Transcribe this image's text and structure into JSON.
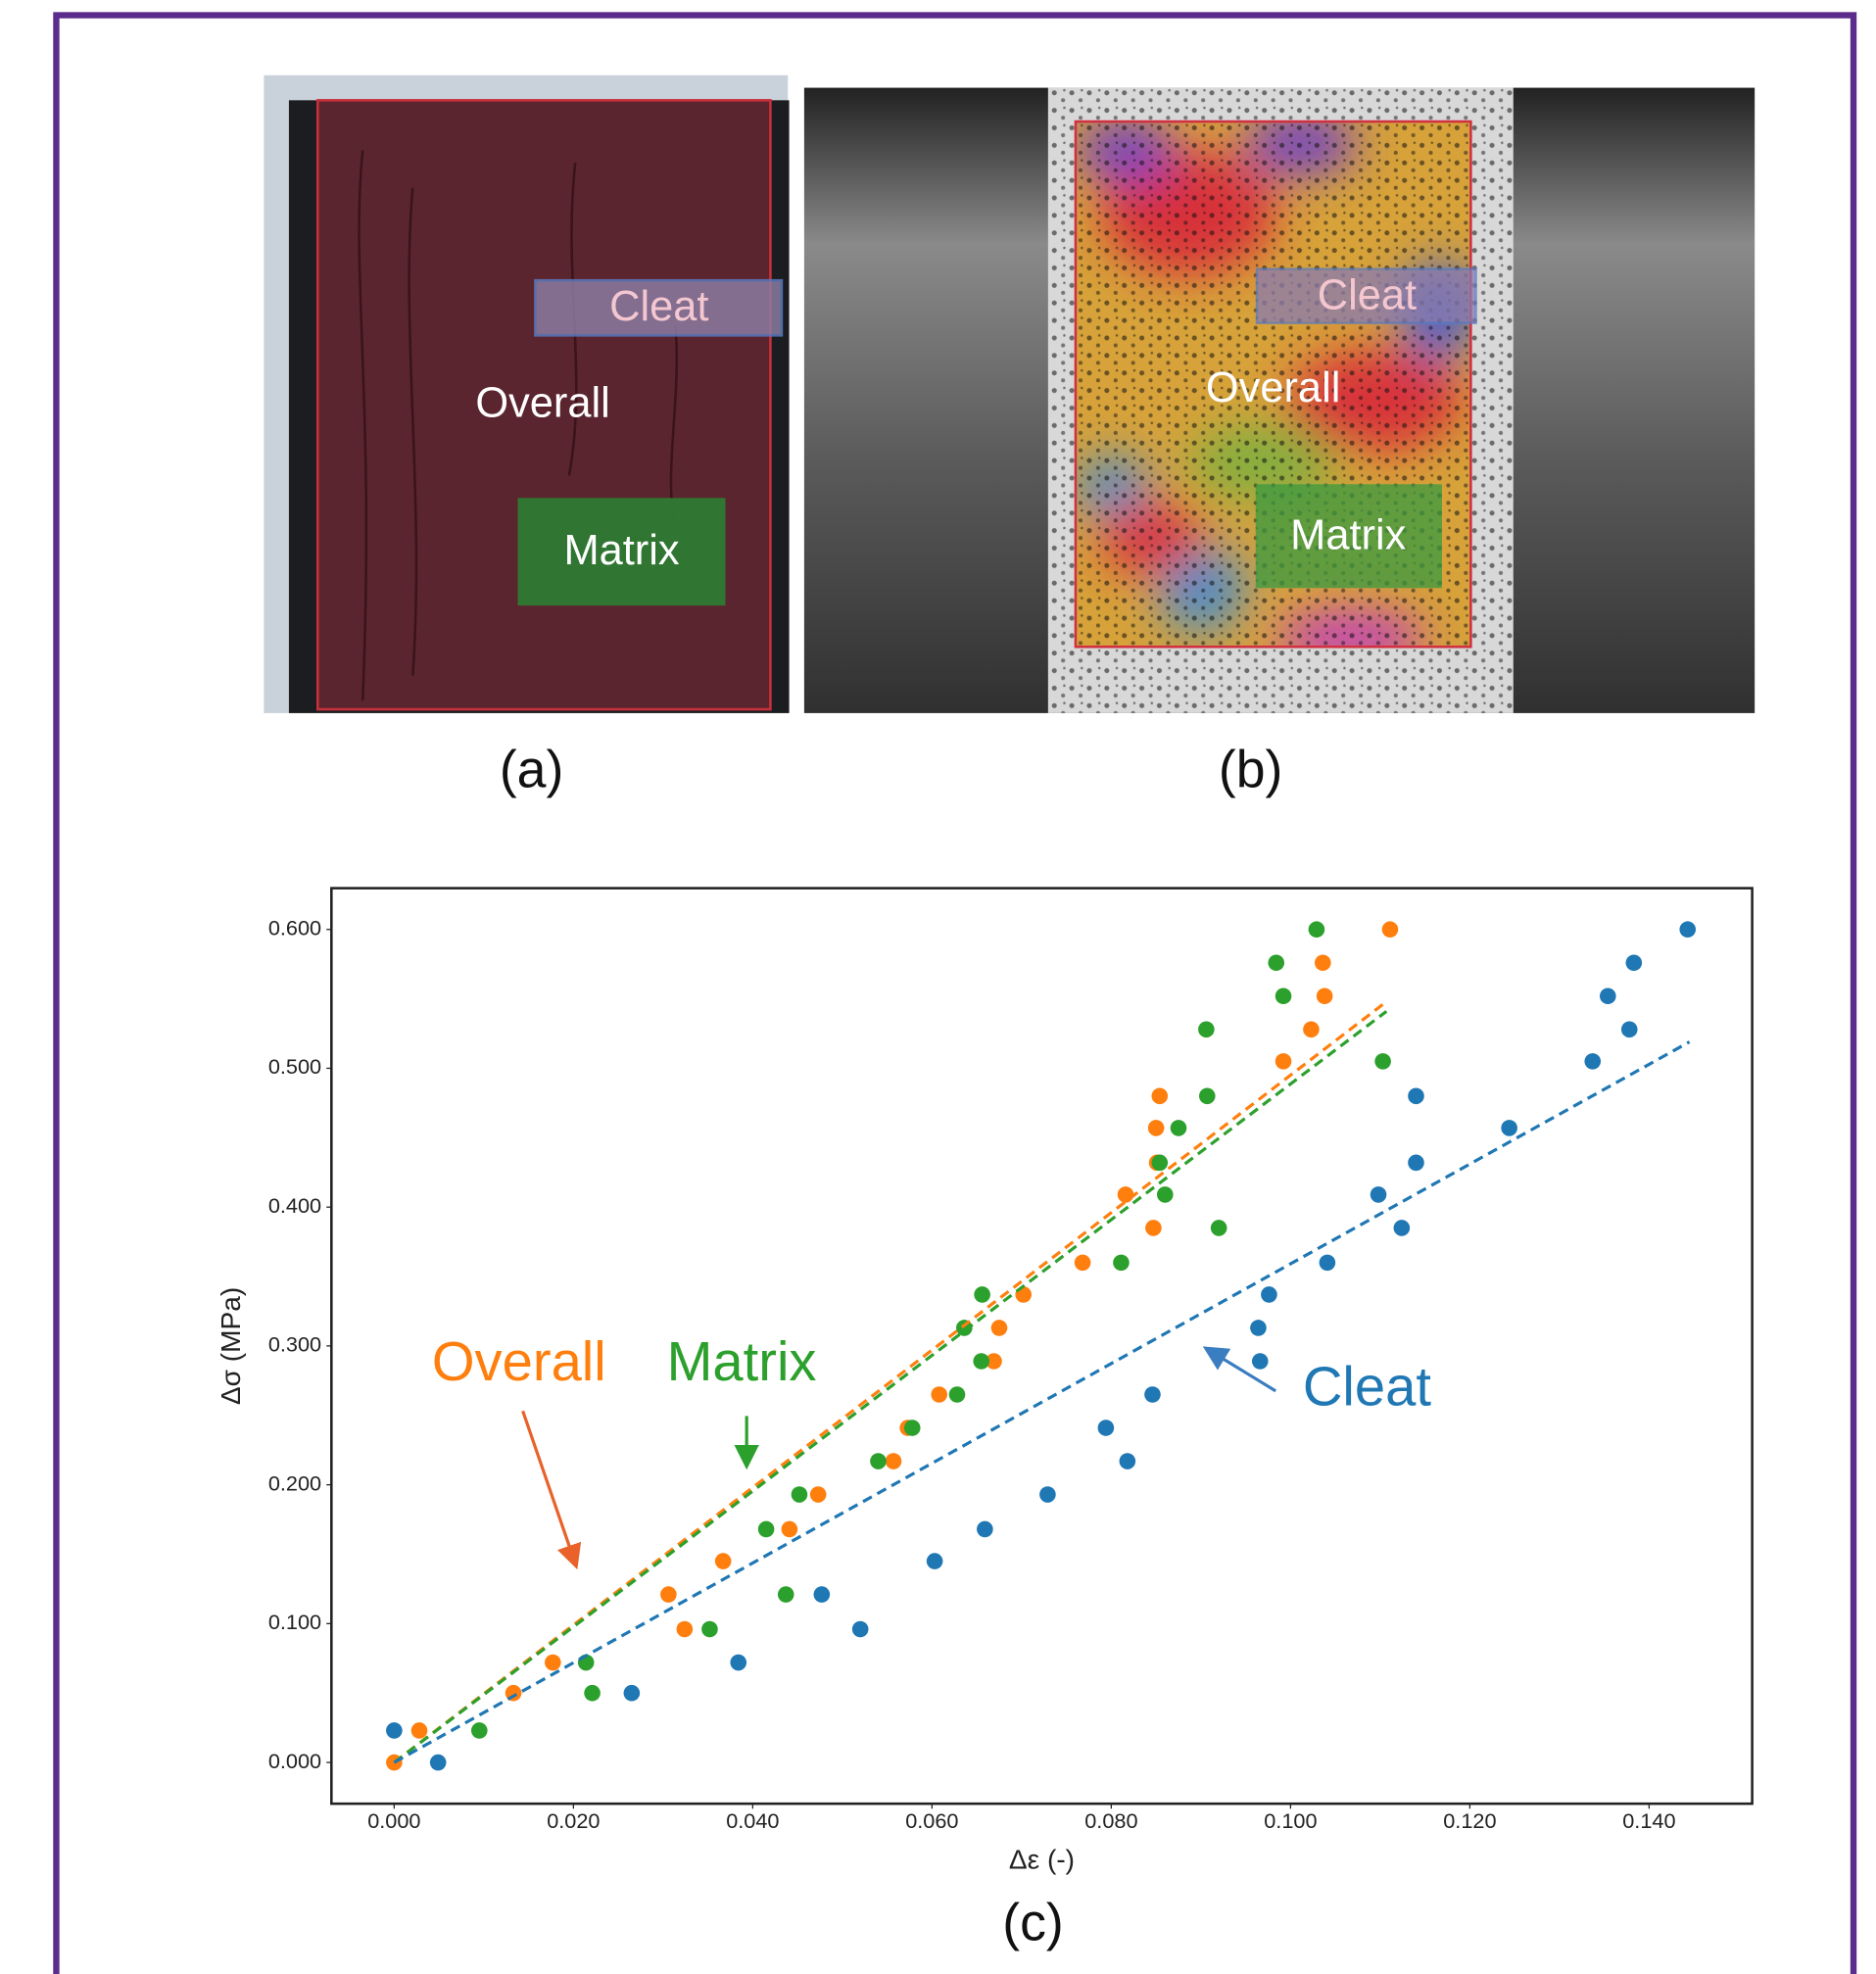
{
  "panels": [
    {
      "label": "(a)"
    },
    {
      "label": "(b)"
    }
  ],
  "chart_data": {
    "type": "scatter",
    "panel_label": "(c)",
    "x_label": "Δε (-)",
    "y_label": "Δσ (MPa)",
    "xlim": [
      -0.007,
      0.1515
    ],
    "ylim": [
      -0.0297,
      0.6297
    ],
    "xticks": [
      {
        "value": 0,
        "label": "0.000"
      },
      {
        "value": 0.02,
        "label": "0.020"
      },
      {
        "value": 0.04,
        "label": "0.040"
      },
      {
        "value": 0.06,
        "label": "0.060"
      },
      {
        "value": 0.08,
        "label": "0.080"
      },
      {
        "value": 0.1,
        "label": "0.100"
      },
      {
        "value": 0.12,
        "label": "0.120"
      },
      {
        "value": 0.14,
        "label": "0.140"
      }
    ],
    "yticks": [
      {
        "value": 0,
        "label": "0.000"
      },
      {
        "value": 0.1,
        "label": "0.100"
      },
      {
        "value": 0.2,
        "label": "0.200"
      },
      {
        "value": 0.3,
        "label": "0.300"
      },
      {
        "value": 0.4,
        "label": "0.400"
      },
      {
        "value": 0.5,
        "label": "0.500"
      },
      {
        "value": 0.6,
        "label": "0.600"
      }
    ],
    "grid": false,
    "series": [
      {
        "name": "Cleat",
        "color": "#1f77b4",
        "x": [
          0,
          0.0049,
          0.0265,
          0.0384,
          0.0477,
          0.052,
          0.0603,
          0.0659,
          0.0729,
          0.0794,
          0.0818,
          0.0846,
          0.0966,
          0.0964,
          0.0976,
          0.1041,
          0.1098,
          0.1124,
          0.114,
          0.114,
          0.1244,
          0.1337,
          0.1354,
          0.1378,
          0.1383,
          0.1443
        ],
        "values": [
          0.023,
          0,
          0.05,
          0.072,
          0.121,
          0.096,
          0.145,
          0.168,
          0.193,
          0.241,
          0.217,
          0.265,
          0.289,
          0.313,
          0.337,
          0.36,
          0.409,
          0.385,
          0.432,
          0.48,
          0.457,
          0.505,
          0.552,
          0.528,
          0.576,
          0.6
        ]
      },
      {
        "name": "Overall",
        "color": "#ff7f0e",
        "x": [
          0,
          0.0028,
          0.0133,
          0.0177,
          0.0306,
          0.0324,
          0.0367,
          0.0441,
          0.0473,
          0.0557,
          0.0573,
          0.0608,
          0.0669,
          0.0675,
          0.0702,
          0.0768,
          0.0816,
          0.0847,
          0.0851,
          0.085,
          0.0854,
          0.0992,
          0.1023,
          0.1038,
          0.1036,
          0.1111
        ],
        "values": [
          0,
          0.023,
          0.05,
          0.072,
          0.121,
          0.096,
          0.145,
          0.168,
          0.193,
          0.217,
          0.241,
          0.265,
          0.289,
          0.313,
          0.337,
          0.36,
          0.409,
          0.385,
          0.432,
          0.457,
          0.48,
          0.505,
          0.528,
          0.552,
          0.576,
          0.6
        ]
      },
      {
        "name": "Matrix",
        "color": "#2ca02c",
        "x": [
          0.0095,
          0.0214,
          0.0221,
          0.0352,
          0.0415,
          0.0437,
          0.0452,
          0.054,
          0.0578,
          0.0628,
          0.0655,
          0.0636,
          0.0656,
          0.0811,
          0.0875,
          0.0854,
          0.086,
          0.092,
          0.0907,
          0.0906,
          0.1103,
          0.0992,
          0.0984,
          0.1029
        ],
        "values": [
          0.023,
          0.072,
          0.05,
          0.096,
          0.168,
          0.121,
          0.193,
          0.217,
          0.241,
          0.265,
          0.289,
          0.313,
          0.337,
          0.36,
          0.457,
          0.432,
          0.409,
          0.385,
          0.48,
          0.528,
          0.505,
          0.552,
          0.576,
          0.6
        ]
      }
    ],
    "fits": [
      {
        "color": "#ff7f0e",
        "x": [
          0,
          0.1107
        ],
        "values": [
          0,
          0.548
        ]
      },
      {
        "color": "#2ca02c",
        "x": [
          0,
          0.1107
        ],
        "values": [
          0,
          0.541
        ]
      },
      {
        "color": "#1f77b4",
        "x": [
          0,
          0.1445
        ],
        "values": [
          0,
          0.519
        ]
      }
    ]
  }
}
